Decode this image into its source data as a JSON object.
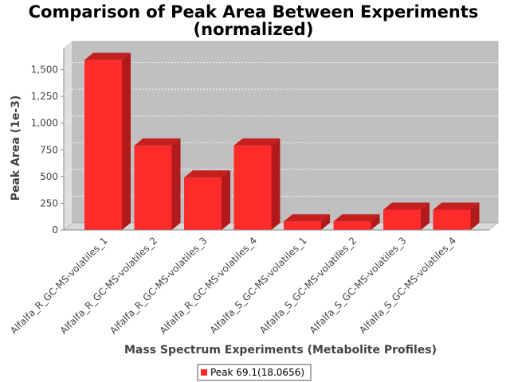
{
  "chart_data": {
    "type": "bar",
    "title": [
      "Comparison of Peak Area Between Experiments",
      "(normalized)"
    ],
    "xlabel": "Mass Spectrum Experiments (Metabolite Profiles)",
    "ylabel": "Peak Area (1e-3)",
    "categories": [
      "Alfalfa_R_GC-MS-volatiles_1",
      "Alfalfa_R_GC-MS-volatiles_2",
      "Alfalfa_R_GC-MS-volatiles_3",
      "Alfalfa_R_GC-MS-volatiles_4",
      "Alfalfa_S_GC-MS-volatiles_1",
      "Alfalfa_S_GC-MS-volatiles_2",
      "Alfalfa_S_GC-MS-volatiles_3",
      "Alfalfa_S_GC-MS-volatiles_4"
    ],
    "series": [
      {
        "name": "Peak 69.1(18.0656)",
        "values": [
          1590,
          790,
          490,
          790,
          80,
          80,
          190,
          190
        ],
        "color": "#ff2a2a"
      }
    ],
    "ylim": [
      0,
      1700
    ],
    "yticks": [
      0,
      250,
      500,
      750,
      1000,
      1250,
      1500
    ],
    "ytick_labels": [
      "0",
      "250",
      "500",
      "750",
      "1,000",
      "1,250",
      "1,500"
    ],
    "grid": true,
    "legend_position": "bottom",
    "plot_background": "#c0c0c0",
    "floor_color": "#d8d8d8",
    "render_3d": true
  }
}
